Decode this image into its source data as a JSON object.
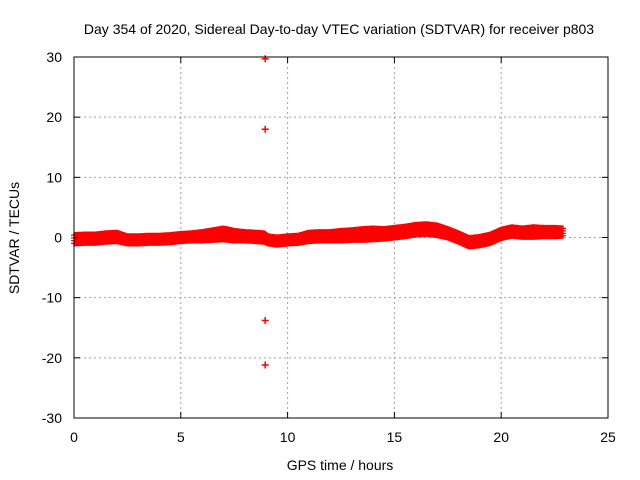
{
  "chart_data": {
    "type": "scatter",
    "title": "Day 354 of 2020, Sidereal Day-to-day VTEC variation (SDTVAR) for receiver p803",
    "xlabel": "GPS time / hours",
    "ylabel": "SDTVAR / TECUs",
    "xlim": [
      0,
      25
    ],
    "ylim": [
      -30,
      30
    ],
    "xticks": [
      0,
      5,
      10,
      15,
      20,
      25
    ],
    "yticks": [
      -30,
      -20,
      -10,
      0,
      10,
      20,
      30
    ],
    "xtick_labels": [
      "0",
      "5",
      "10",
      "15",
      "20",
      "25"
    ],
    "ytick_labels": [
      "-30",
      "-20",
      "-10",
      "0",
      "10",
      "20",
      "30"
    ],
    "grid": true,
    "marker": "plus",
    "color": "#ff0000",
    "series": [
      {
        "name": "SDTVAR",
        "band": {
          "x": [
            0,
            0.5,
            1,
            1.5,
            2,
            2.5,
            3,
            3.5,
            4,
            4.5,
            5,
            5.5,
            6,
            6.5,
            7,
            7.5,
            8,
            8.5,
            8.9,
            9.1,
            9.5,
            10,
            10.5,
            11,
            11.5,
            12,
            12.5,
            13,
            13.5,
            14,
            14.5,
            15,
            15.5,
            16,
            16.5,
            17,
            17.5,
            18,
            18.5,
            19,
            19.5,
            20,
            20.5,
            21,
            21.5,
            22,
            22.5,
            22.9
          ],
          "center": [
            -0.3,
            -0.2,
            -0.2,
            0.0,
            0.1,
            -0.4,
            -0.4,
            -0.3,
            -0.3,
            -0.2,
            0.0,
            0.1,
            0.2,
            0.4,
            0.6,
            0.3,
            0.2,
            0.1,
            0.0,
            -0.4,
            -0.6,
            -0.4,
            -0.3,
            0.1,
            0.2,
            0.2,
            0.3,
            0.4,
            0.5,
            0.6,
            0.6,
            0.8,
            1.0,
            1.3,
            1.4,
            1.2,
            0.7,
            0.0,
            -0.8,
            -0.6,
            -0.2,
            0.6,
            1.0,
            0.8,
            0.9,
            0.9,
            0.9,
            0.9
          ],
          "halfwidth": [
            0.7,
            0.7,
            0.7,
            0.7,
            0.7,
            0.6,
            0.6,
            0.6,
            0.6,
            0.6,
            0.6,
            0.6,
            0.7,
            0.8,
            0.9,
            0.8,
            0.7,
            0.7,
            0.7,
            0.6,
            0.6,
            0.6,
            0.6,
            0.7,
            0.7,
            0.7,
            0.8,
            0.8,
            0.9,
            0.9,
            0.8,
            0.8,
            0.8,
            0.8,
            0.8,
            0.8,
            0.7,
            0.7,
            0.7,
            0.7,
            0.7,
            0.7,
            0.7,
            0.7,
            0.8,
            0.7,
            0.7,
            0.6
          ]
        },
        "outliers": [
          {
            "x": 8.95,
            "y": 29.7
          },
          {
            "x": 8.95,
            "y": 18.0
          },
          {
            "x": 8.95,
            "y": -13.8
          },
          {
            "x": 8.95,
            "y": -21.2
          }
        ]
      }
    ]
  }
}
